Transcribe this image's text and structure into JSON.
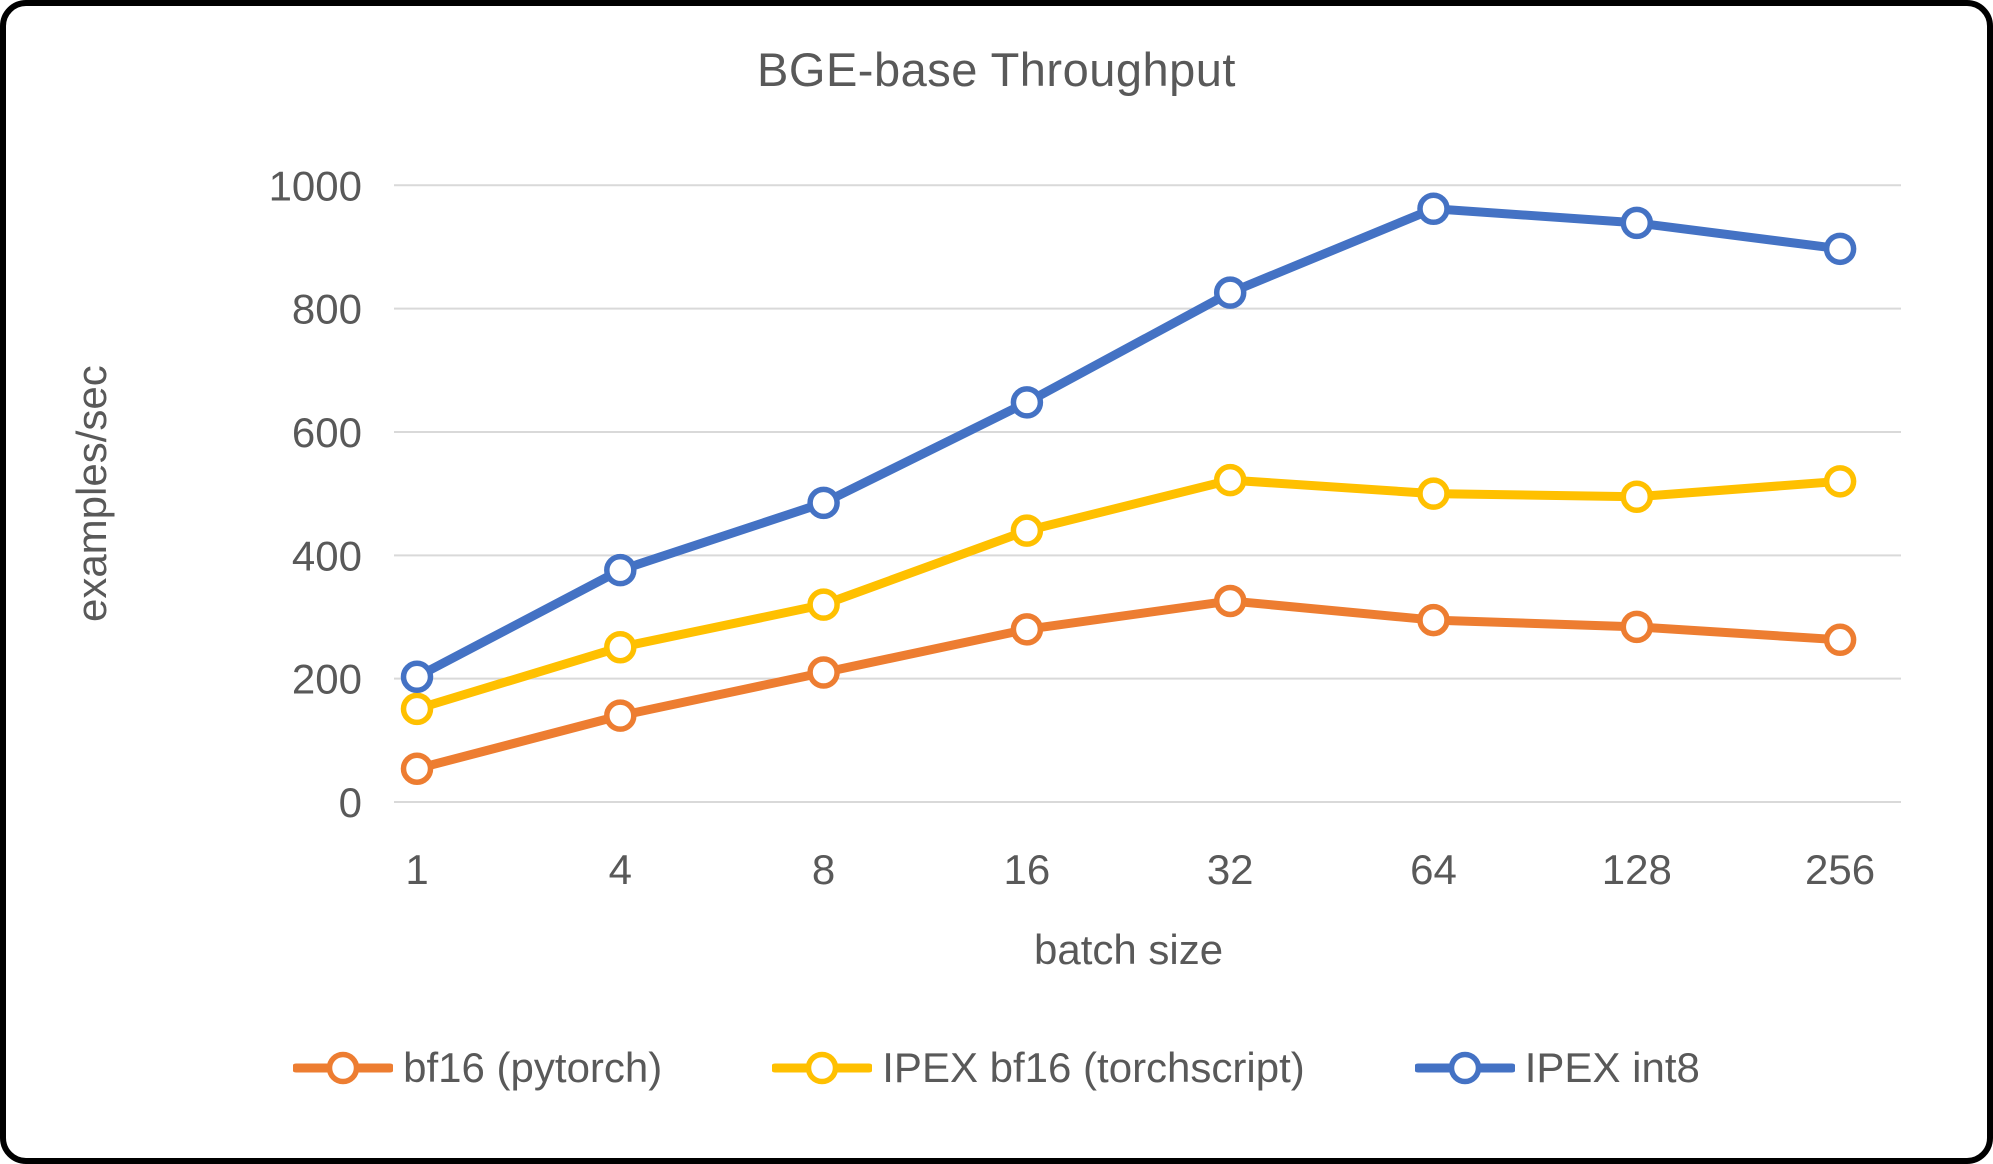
{
  "chart_data": {
    "type": "line",
    "title": "BGE-base Throughput",
    "xlabel": "batch size",
    "ylabel": "examples/sec",
    "categories": [
      "1",
      "4",
      "8",
      "16",
      "32",
      "64",
      "128",
      "256"
    ],
    "yticks": [
      "0",
      "200",
      "400",
      "600",
      "800",
      "1000"
    ],
    "ylim": [
      0,
      1000
    ],
    "grid": "horizontal",
    "legend_position": "bottom",
    "marker_style": "open-circle",
    "colors": {
      "text": "#595959",
      "gridline": "#D9D9D9",
      "background": "#FFFFFF",
      "frame_border": "#000000"
    },
    "series": [
      {
        "name": "bf16 (pytorch)",
        "color": "#ED7D31",
        "values": [
          54,
          140,
          210,
          280,
          326,
          295,
          284,
          263
        ]
      },
      {
        "name": "IPEX bf16 (torchscript)",
        "color": "#FFC000",
        "values": [
          151,
          251,
          320,
          440,
          522,
          500,
          495,
          520
        ]
      },
      {
        "name": "IPEX int8",
        "color": "#4472C4",
        "values": [
          203,
          376,
          485,
          648,
          826,
          962,
          939,
          897
        ]
      }
    ]
  }
}
